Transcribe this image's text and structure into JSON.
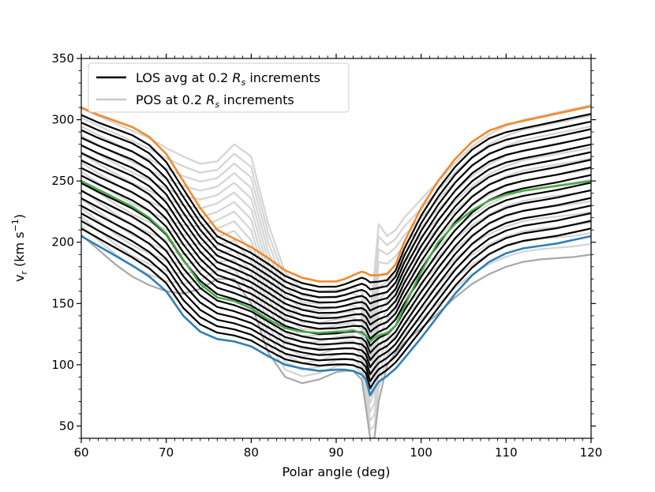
{
  "chart_data": {
    "type": "line",
    "title": "",
    "xlabel": "Polar angle (deg)",
    "ylabel": "v_r (km s^-1)",
    "ylabel_parts": {
      "main": "v",
      "sub": "r",
      "unit_open": " (km s",
      "sup": "−1",
      "unit_close": ")"
    },
    "xlim": [
      60,
      120
    ],
    "ylim": [
      40,
      350
    ],
    "xticks": [
      60,
      70,
      80,
      90,
      100,
      110,
      120
    ],
    "yticks": [
      50,
      100,
      150,
      200,
      250,
      300,
      350
    ],
    "grid": false,
    "legend": {
      "placement": "top-left",
      "entries": [
        {
          "label_pre": "LOS avg at 0.2 ",
          "label_sym": "R",
          "label_sub": "s",
          "label_post": " increments",
          "color": "#000000"
        },
        {
          "label_pre": "POS at 0.2 ",
          "label_sym": "R",
          "label_sub": "s",
          "label_post": " increments",
          "color": "#c8c8c8"
        }
      ]
    },
    "colors": {
      "los": "#000000",
      "pos_light": "#d4d4d4",
      "pos_dark": "#a8a8a8",
      "top": "#f28a2e",
      "middle": "#4aa84a",
      "bottom": "#2f7fb8"
    },
    "x": [
      60,
      62,
      64,
      66,
      68,
      70,
      72,
      74,
      76,
      78,
      80,
      82,
      84,
      86,
      88,
      90,
      91,
      92,
      93,
      93.5,
      94,
      94.5,
      95,
      96,
      97,
      98,
      100,
      102,
      104,
      106,
      108,
      110,
      112,
      114,
      116,
      118,
      120
    ],
    "series": [
      {
        "name": "LOS top (orange)",
        "role": "top",
        "values": [
          310,
          304,
          299,
          294,
          286,
          272,
          250,
          228,
          210,
          203,
          196,
          187,
          177,
          171,
          168,
          168,
          170,
          173,
          176,
          175,
          173,
          173,
          173,
          174,
          182,
          200,
          228,
          250,
          268,
          282,
          291,
          296,
          299,
          302,
          305,
          308,
          311
        ]
      },
      {
        "name": "LOS middle (green)",
        "role": "middle",
        "values": [
          250,
          243,
          236,
          229,
          220,
          207,
          186,
          166,
          155,
          152,
          146,
          137,
          130,
          127,
          126,
          127,
          127,
          128,
          126,
          124,
          119,
          122,
          124,
          126,
          132,
          147,
          176,
          200,
          215,
          226,
          234,
          239,
          242,
          244,
          246,
          248,
          250
        ]
      },
      {
        "name": "LOS bottom (blue)",
        "role": "bottom",
        "values": [
          205,
          197,
          189,
          181,
          172,
          160,
          140,
          127,
          121,
          119,
          115,
          107,
          100,
          97,
          95,
          96,
          96,
          95,
          92,
          88,
          75,
          81,
          86,
          91,
          97,
          105,
          122,
          140,
          158,
          173,
          184,
          191,
          195,
          197,
          199,
          202,
          205
        ]
      },
      {
        "name": "POS light envelope",
        "role": "pos_light",
        "values": [
          300,
          294,
          288,
          282,
          276,
          266,
          255,
          248,
          247,
          255,
          240,
          200,
          160,
          135,
          126,
          123,
          120,
          116,
          60,
          40,
          40,
          40,
          55,
          160,
          175,
          200,
          228,
          246,
          258,
          264,
          268,
          270,
          272,
          274,
          276,
          278,
          280
        ]
      },
      {
        "name": "POS upper spike",
        "role": "pos_light",
        "values": [
          309,
          303,
          297,
          291,
          285,
          277,
          270,
          264,
          266,
          280,
          270,
          215,
          175,
          162,
          160,
          161,
          162,
          163,
          160,
          150,
          140,
          175,
          215,
          205,
          210,
          220,
          235,
          250,
          265,
          278,
          288,
          295,
          300,
          303,
          306,
          309,
          312
        ]
      },
      {
        "name": "POS bottom (dark)",
        "role": "pos_dark",
        "values": [
          206,
          194,
          182,
          172,
          165,
          160,
          158,
          162,
          170,
          170,
          150,
          110,
          90,
          85,
          88,
          94,
          95,
          95,
          88,
          65,
          40,
          40,
          70,
          100,
          110,
          118,
          130,
          142,
          155,
          166,
          174,
          180,
          184,
          186,
          187,
          188,
          190
        ]
      }
    ],
    "los_family": {
      "count": 17,
      "offsets_description": "LOS curves evenly spaced between bottom and top curves",
      "style": "black solid lines"
    },
    "pos_family": {
      "count": 14,
      "style": "light gray solid lines between dark bottom and upper spike"
    }
  }
}
